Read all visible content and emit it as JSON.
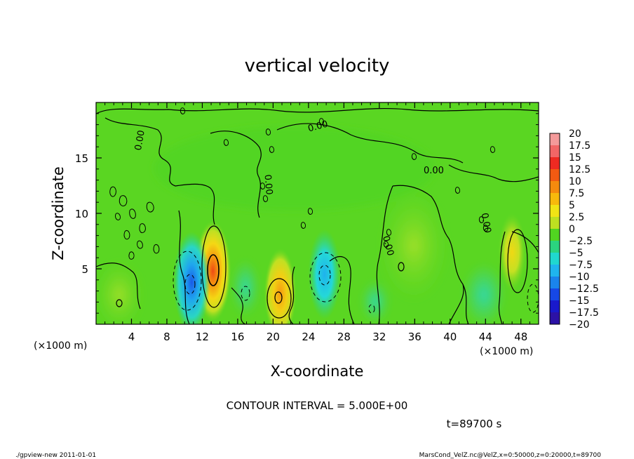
{
  "chart_data": {
    "type": "heatmap",
    "title": "vertical velocity",
    "xlabel": "X-coordinate",
    "ylabel": "Z-coordinate",
    "x_unit": "(×1000 m)",
    "y_unit": "(×1000 m)",
    "xlim": [
      0,
      50
    ],
    "ylim": [
      0,
      20
    ],
    "x_ticks": [
      4,
      8,
      12,
      16,
      20,
      24,
      28,
      32,
      36,
      40,
      44,
      48
    ],
    "y_ticks": [
      5,
      10,
      15
    ],
    "colorbar": {
      "levels": [
        20,
        17.5,
        15,
        12.5,
        10,
        7.5,
        5,
        2.5,
        0,
        -2.5,
        -5,
        -7.5,
        -10,
        -12.5,
        -15,
        -17.5,
        -20
      ],
      "labels": [
        "20",
        "17.5",
        "15",
        "12.5",
        "10",
        "7.5",
        "5",
        "2.5",
        "0",
        "−2.5",
        "−5",
        "−7.5",
        "−10",
        "−12.5",
        "−15",
        "−17.5",
        "−20"
      ],
      "colors": [
        "#f49a9a",
        "#f26666",
        "#ee2a22",
        "#f25a12",
        "#f58a0e",
        "#f7b90c",
        "#f0e415",
        "#bde021",
        "#51d521",
        "#2bd37f",
        "#20d8cf",
        "#1fb5ee",
        "#1a84ec",
        "#1648e6",
        "#1919cc",
        "#2c12a6",
        "#5a1aa0"
      ]
    },
    "contour_labels": [
      "0.00",
      "0.00",
      "0.00",
      "0.00",
      "0.00",
      "0.00"
    ],
    "contour_interval_text": "CONTOUR INTERVAL = 5.000E+00",
    "time_text": "t=89700 s",
    "features": [
      {
        "kind": "updraft",
        "x": 13.2,
        "z": 4.8,
        "peak": 10
      },
      {
        "kind": "updraft",
        "x": 20.8,
        "z": 2.8,
        "peak": 7.5
      },
      {
        "kind": "updraft",
        "x": 47,
        "z": 6.5,
        "peak": 5
      },
      {
        "kind": "downdraft",
        "x": 10.8,
        "z": 3.8,
        "peak": -10
      },
      {
        "kind": "downdraft",
        "x": 25.8,
        "z": 4.5,
        "peak": -7.5
      }
    ]
  },
  "footer": {
    "left": "./gpview-new   2011-01-01",
    "right": "MarsCond_VelZ.nc@VelZ,x=0:50000,z=0:20000,t=89700"
  }
}
